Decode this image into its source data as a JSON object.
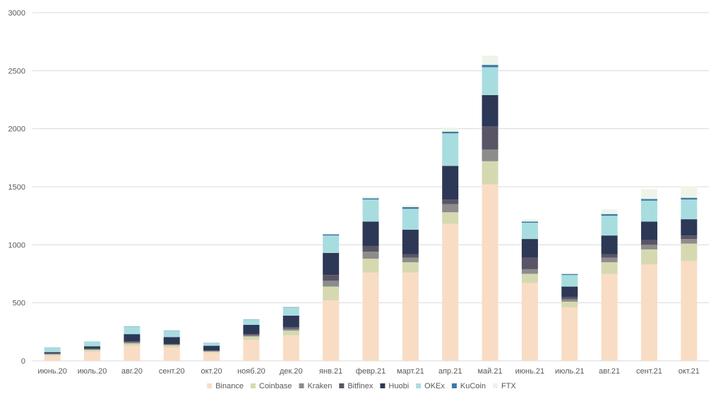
{
  "chart_data": {
    "type": "bar",
    "stacked": true,
    "title": "",
    "xlabel": "",
    "ylabel": "",
    "ylim": [
      0,
      3000
    ],
    "yticks": [
      0,
      500,
      1000,
      1500,
      2000,
      2500,
      3000
    ],
    "grid": true,
    "legend_position": "bottom",
    "categories": [
      "июнь.20",
      "июль.20",
      "авг.20",
      "сент.20",
      "окт.20",
      "нояб.20",
      "дек.20",
      "янв.21",
      "февр.21",
      "март.21",
      "апр.21",
      "май.21",
      "июнь.21",
      "июль.21",
      "авг.21",
      "сент.21",
      "окт.21"
    ],
    "series": [
      {
        "name": "Binance",
        "color": "#f9dcc4",
        "values": [
          45,
          80,
          130,
          115,
          70,
          180,
          220,
          520,
          760,
          760,
          1180,
          1520,
          670,
          460,
          750,
          830,
          860
        ]
      },
      {
        "name": "Coinbase",
        "color": "#d6d9b0",
        "values": [
          10,
          15,
          20,
          20,
          10,
          30,
          40,
          120,
          120,
          90,
          100,
          200,
          80,
          50,
          100,
          130,
          150
        ]
      },
      {
        "name": "Kraken",
        "color": "#8c8c8c",
        "values": [
          5,
          5,
          10,
          5,
          5,
          10,
          15,
          50,
          60,
          40,
          70,
          100,
          40,
          20,
          40,
          40,
          40
        ]
      },
      {
        "name": "Bitfinex",
        "color": "#5a5566",
        "values": [
          5,
          5,
          10,
          5,
          5,
          10,
          15,
          50,
          50,
          30,
          40,
          200,
          100,
          20,
          30,
          40,
          30
        ]
      },
      {
        "name": "Huobi",
        "color": "#2c3856",
        "values": [
          10,
          20,
          60,
          60,
          40,
          80,
          100,
          190,
          210,
          210,
          290,
          270,
          160,
          90,
          160,
          160,
          140
        ]
      },
      {
        "name": "OKEx",
        "color": "#a8dde0",
        "values": [
          40,
          40,
          65,
          55,
          25,
          45,
          70,
          150,
          190,
          180,
          280,
          240,
          140,
          100,
          170,
          180,
          170
        ]
      },
      {
        "name": "KuCoin",
        "color": "#3d78a6",
        "values": [
          1,
          1,
          2,
          2,
          1,
          2,
          3,
          10,
          10,
          15,
          15,
          20,
          10,
          8,
          15,
          15,
          15
        ]
      },
      {
        "name": "FTX",
        "color": "#eef4ea",
        "values": [
          0,
          0,
          0,
          0,
          0,
          0,
          0,
          0,
          15,
          15,
          35,
          80,
          20,
          10,
          40,
          85,
          100
        ]
      }
    ]
  }
}
